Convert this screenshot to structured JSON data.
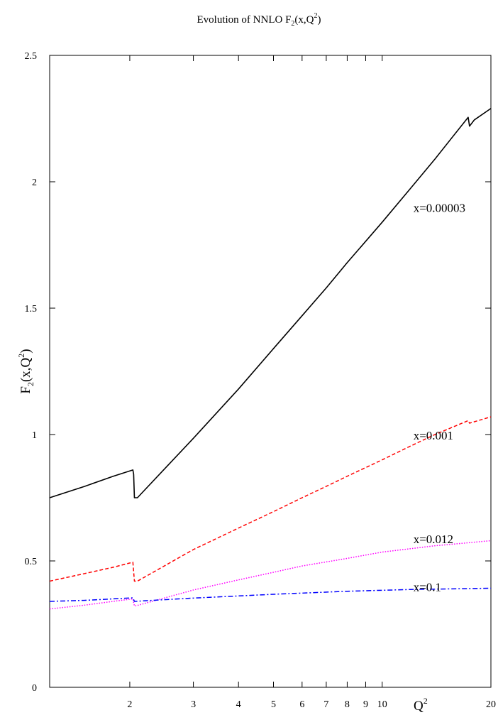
{
  "chart_data": {
    "type": "line",
    "title": {
      "main": "Evolution of NNLO F",
      "sub1": "2",
      "mid": "(x,Q",
      "sup1": "2",
      "end": ")"
    },
    "ylabel": {
      "main": "F",
      "sub": "2",
      "mid": "(x,Q",
      "sup": "2",
      "end": ")"
    },
    "xlabel": {
      "main": "Q",
      "sup": "2"
    },
    "x_scale": "log",
    "xlim": [
      1.2,
      20
    ],
    "ylim": [
      0,
      2.5
    ],
    "grid": false,
    "x_ticks": [
      2,
      3,
      4,
      5,
      6,
      7,
      8,
      9,
      10,
      20
    ],
    "x_tick_labels": [
      "2",
      "3",
      "4",
      "5",
      "6",
      "7",
      "8",
      "9",
      "10",
      "20"
    ],
    "y_ticks": [
      0,
      0.5,
      1,
      1.5,
      2,
      2.5
    ],
    "y_tick_labels": [
      "0",
      "0.5",
      "1",
      "1.5",
      "2",
      "2.5"
    ],
    "series": [
      {
        "name": "x=0.00003",
        "color": "#000000",
        "dash": "solid",
        "points": [
          [
            1.2,
            0.75
          ],
          [
            1.5,
            0.795
          ],
          [
            1.8,
            0.835
          ],
          [
            2.04,
            0.86
          ],
          [
            2.05,
            0.843
          ],
          [
            2.06,
            0.75
          ],
          [
            2.1,
            0.75
          ],
          [
            2.5,
            0.865
          ],
          [
            3,
            0.985
          ],
          [
            4,
            1.18
          ],
          [
            5,
            1.34
          ],
          [
            6,
            1.47
          ],
          [
            7,
            1.58
          ],
          [
            8,
            1.68
          ],
          [
            10,
            1.84
          ],
          [
            12,
            1.975
          ],
          [
            14,
            2.09
          ],
          [
            17.3,
            2.255
          ],
          [
            17.45,
            2.22
          ],
          [
            18,
            2.245
          ],
          [
            20,
            2.29
          ]
        ]
      },
      {
        "name": "x=0.001",
        "color": "#ff0000",
        "dash": "dashed",
        "points": [
          [
            1.2,
            0.42
          ],
          [
            1.5,
            0.45
          ],
          [
            1.8,
            0.475
          ],
          [
            2.04,
            0.495
          ],
          [
            2.06,
            0.42
          ],
          [
            2.1,
            0.42
          ],
          [
            3,
            0.545
          ],
          [
            4,
            0.63
          ],
          [
            5,
            0.695
          ],
          [
            6,
            0.75
          ],
          [
            7,
            0.795
          ],
          [
            8,
            0.835
          ],
          [
            10,
            0.9
          ],
          [
            12,
            0.955
          ],
          [
            14,
            1.0
          ],
          [
            17.3,
            1.055
          ],
          [
            17.45,
            1.045
          ],
          [
            20,
            1.07
          ]
        ]
      },
      {
        "name": "x=0.012",
        "color": "#ff00ff",
        "dash": "dotted",
        "points": [
          [
            1.2,
            0.31
          ],
          [
            1.5,
            0.325
          ],
          [
            1.8,
            0.34
          ],
          [
            2.04,
            0.35
          ],
          [
            2.06,
            0.322
          ],
          [
            2.1,
            0.324
          ],
          [
            3,
            0.385
          ],
          [
            4,
            0.425
          ],
          [
            5,
            0.455
          ],
          [
            6,
            0.48
          ],
          [
            8,
            0.51
          ],
          [
            10,
            0.535
          ],
          [
            14,
            0.56
          ],
          [
            20,
            0.58
          ]
        ]
      },
      {
        "name": "x=0.1",
        "color": "#0000ff",
        "dash": "dashdot",
        "points": [
          [
            1.2,
            0.34
          ],
          [
            1.5,
            0.344
          ],
          [
            2.04,
            0.354
          ],
          [
            2.06,
            0.34
          ],
          [
            3,
            0.353
          ],
          [
            5,
            0.368
          ],
          [
            8,
            0.38
          ],
          [
            12,
            0.387
          ],
          [
            20,
            0.392
          ]
        ]
      }
    ],
    "annotations": [
      {
        "text": "x=0.00003",
        "x": 12.2,
        "y": 1.88
      },
      {
        "text": "x=0.001",
        "x": 12.2,
        "y": 0.98
      },
      {
        "text": "x=0.012",
        "x": 12.2,
        "y": 0.57
      },
      {
        "text": "x=0.1",
        "x": 12.2,
        "y": 0.38
      }
    ]
  }
}
